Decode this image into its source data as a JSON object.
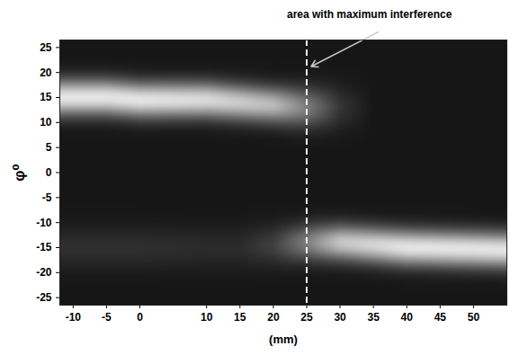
{
  "chart_data": {
    "type": "heatmap",
    "x_label": "(mm)",
    "y_label": "φ⁰",
    "xlim": [
      -12,
      55
    ],
    "ylim": [
      -26.5,
      26.5
    ],
    "xticks": [
      -10,
      -5,
      0,
      10,
      15,
      20,
      25,
      30,
      35,
      40,
      45,
      50
    ],
    "yticks": [
      -25,
      -20,
      -15,
      -10,
      -5,
      0,
      5,
      10,
      15,
      20,
      25
    ],
    "colors": [
      "#161616",
      "#e4e4e4"
    ],
    "intensity_range": [
      0,
      1
    ],
    "bands": [
      {
        "x": [
          -12,
          -5,
          0,
          10,
          20,
          25,
          30,
          35
        ],
        "center": [
          15,
          15,
          14.5,
          14.5,
          13.5,
          13,
          13,
          13
        ],
        "width": [
          2.5,
          2.5,
          2.5,
          2.5,
          2.5,
          2.8,
          3,
          3
        ],
        "intensity": [
          1,
          1,
          1,
          0.95,
          0.8,
          0.5,
          0.15,
          0
        ]
      },
      {
        "x": [
          -12,
          0,
          10,
          15,
          20,
          25,
          30,
          40,
          55
        ],
        "center": [
          -15,
          -15,
          -15,
          -15,
          -14.5,
          -14,
          -14,
          -15,
          -15.5
        ],
        "width": [
          3,
          3,
          3,
          3,
          2.8,
          2.6,
          2.5,
          2.5,
          2.5
        ],
        "intensity": [
          0.12,
          0.12,
          0.1,
          0.1,
          0.2,
          0.5,
          0.85,
          1,
          1
        ]
      }
    ],
    "annotations": [
      {
        "text": "area with maximum interference",
        "x": 25,
        "line_style": "dashed"
      }
    ]
  }
}
